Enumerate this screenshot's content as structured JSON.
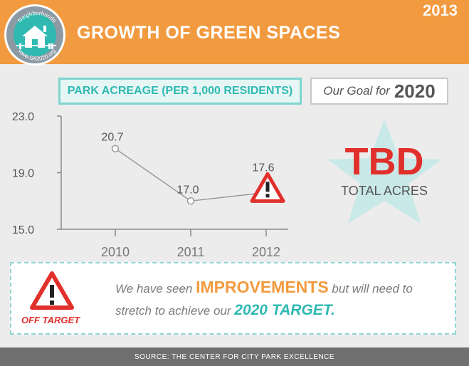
{
  "header": {
    "title": "GROWTH OF GREEN SPACES",
    "year": "2013",
    "logo": {
      "top_text": "Neighborhoods",
      "bottom_text": "www.SA2020.org"
    }
  },
  "chart_title": "PARK ACREAGE (PER 1,000 RESIDENTS)",
  "goal": {
    "label": "Our Goal for",
    "year": "2020",
    "value": "TBD",
    "unit": "TOTAL ACRES"
  },
  "chart_data": {
    "type": "line",
    "title": "PARK ACREAGE (PER 1,000 RESIDENTS)",
    "x": [
      "2010",
      "2011",
      "2012"
    ],
    "y": [
      20.7,
      17.0,
      17.6
    ],
    "data_labels": [
      "20.7",
      "17.0",
      "17.6"
    ],
    "ylim": [
      15.0,
      23.0
    ],
    "y_ticks": [
      "23.0",
      "19.0",
      "15.0"
    ],
    "y_tick_values": [
      23.0,
      19.0,
      15.0
    ],
    "grid": false,
    "warning_point": "2012",
    "colors": {
      "line": "#9a9a9a",
      "axis": "#8a8a8a",
      "warning": "#e1302b"
    }
  },
  "callout": {
    "status": "OFF TARGET",
    "text_1": "We have seen",
    "highlight_1": "IMPROVEMENTS",
    "text_2": "but will need to stretch to achieve our",
    "highlight_2": "2020 TARGET."
  },
  "footer": "SOURCE: THE CENTER FOR CITY PARK EXCELLENCE",
  "colors": {
    "orange": "#f29a3f",
    "teal": "#2fb9b1",
    "red": "#e1302b",
    "gray_text": "#555555"
  }
}
